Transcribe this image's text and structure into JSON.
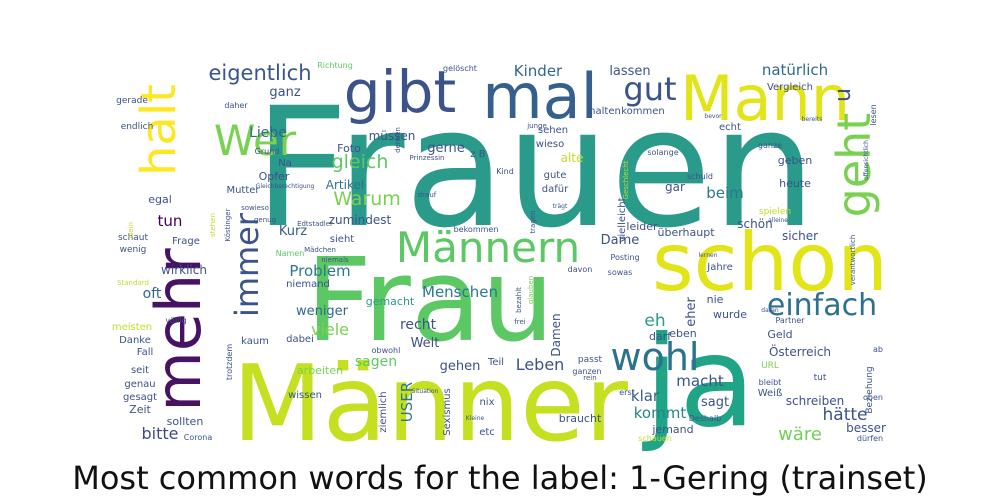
{
  "chart_data": {
    "type": "wordcloud",
    "title": "Most common words for the label: 1-Gering (trainset)",
    "colormap": "viridis",
    "background": "#ffffff",
    "words": [
      {
        "text": "Frauen",
        "weight": 1.0
      },
      {
        "text": "Frau",
        "weight": 0.85
      },
      {
        "text": "Männer",
        "weight": 0.8
      },
      {
        "text": "ja",
        "weight": 0.72
      },
      {
        "text": "schon",
        "weight": 0.55
      },
      {
        "text": "mehr",
        "weight": 0.5
      },
      {
        "text": "Mann",
        "weight": 0.5
      },
      {
        "text": "mal",
        "weight": 0.48
      },
      {
        "text": "gibt",
        "weight": 0.45
      },
      {
        "text": "Männern",
        "weight": 0.42
      },
      {
        "text": "wohl",
        "weight": 0.38
      },
      {
        "text": "einfach",
        "weight": 0.36
      },
      {
        "text": "Wer",
        "weight": 0.36
      },
      {
        "text": "geht",
        "weight": 0.36
      },
      {
        "text": "halt",
        "weight": 0.35
      },
      {
        "text": "immer",
        "weight": 0.32
      },
      {
        "text": "gut",
        "weight": 0.3
      },
      {
        "text": "eigentlich",
        "weight": 0.26
      },
      {
        "text": "gleich",
        "weight": 0.24
      },
      {
        "text": "Warum",
        "weight": 0.22
      },
      {
        "text": "Menschen",
        "weight": 0.21
      },
      {
        "text": "Leben",
        "weight": 0.2
      },
      {
        "text": "Kinder",
        "weight": 0.19
      },
      {
        "text": "natürlich",
        "weight": 0.19
      },
      {
        "text": "viele",
        "weight": 0.2
      },
      {
        "text": "wäre",
        "weight": 0.2
      },
      {
        "text": "hätte",
        "weight": 0.2
      },
      {
        "text": "macht",
        "weight": 0.19
      },
      {
        "text": "kommt",
        "weight": 0.19
      },
      {
        "text": "bitte",
        "weight": 0.19
      },
      {
        "text": "eh",
        "weight": 0.2
      },
      {
        "text": "Problem",
        "weight": 0.18
      },
      {
        "text": "Liebe",
        "weight": 0.17
      },
      {
        "text": "ganz",
        "weight": 0.17
      },
      {
        "text": "beim",
        "weight": 0.17
      },
      {
        "text": "tun",
        "weight": 0.17
      },
      {
        "text": "USER",
        "weight": 0.16
      },
      {
        "text": "weniger",
        "weight": 0.16
      },
      {
        "text": "klar",
        "weight": 0.17
      },
      {
        "text": "eher",
        "weight": 0.16
      },
      {
        "text": "sagt",
        "weight": 0.15
      },
      {
        "text": "sagen",
        "weight": 0.17
      },
      {
        "text": "recht",
        "weight": 0.15
      },
      {
        "text": "Welt",
        "weight": 0.15
      },
      {
        "text": "gehen",
        "weight": 0.15
      },
      {
        "text": "Dame",
        "weight": 0.15
      },
      {
        "text": "gerne",
        "weight": 0.15
      },
      {
        "text": "Kurz",
        "weight": 0.15
      },
      {
        "text": "oft",
        "weight": 0.15
      },
      {
        "text": "lassen",
        "weight": 0.14
      },
      {
        "text": "müssen",
        "weight": 0.14
      },
      {
        "text": "Artikel",
        "weight": 0.14
      },
      {
        "text": "zumindest",
        "weight": 0.13
      },
      {
        "text": "wirklich",
        "weight": 0.13
      },
      {
        "text": "alte",
        "weight": 0.13
      },
      {
        "text": "Damen",
        "weight": 0.13
      },
      {
        "text": "schön",
        "weight": 0.13
      },
      {
        "text": "sicher",
        "weight": 0.13
      },
      {
        "text": "Österreich",
        "weight": 0.13
      },
      {
        "text": "schreiben",
        "weight": 0.13
      },
      {
        "text": "besser",
        "weight": 0.13
      },
      {
        "text": "gemacht",
        "weight": 0.12
      },
      {
        "text": "braucht",
        "weight": 0.12
      },
      {
        "text": "jemand",
        "weight": 0.12
      },
      {
        "text": "Opfer",
        "weight": 0.12
      },
      {
        "text": "überhaupt",
        "weight": 0.12
      },
      {
        "text": "leider",
        "weight": 0.12
      },
      {
        "text": "gar",
        "weight": 0.12
      },
      {
        "text": "geben",
        "weight": 0.12
      },
      {
        "text": "heute",
        "weight": 0.12
      },
      {
        "text": "Foto",
        "weight": 0.12
      },
      {
        "text": "egal",
        "weight": 0.12
      },
      {
        "text": "ziemlich",
        "weight": 0.11
      },
      {
        "text": "etc",
        "weight": 0.11
      },
      {
        "text": "Sexismus",
        "weight": 0.11
      },
      {
        "text": "Weiß",
        "weight": 0.11
      },
      {
        "text": "Zeit",
        "weight": 0.11
      },
      {
        "text": "sollten",
        "weight": 0.11
      },
      {
        "text": "arbeiten",
        "weight": 0.11
      },
      {
        "text": "Geld",
        "weight": 0.11
      },
      {
        "text": "darf",
        "weight": 0.11
      },
      {
        "text": "eben",
        "weight": 0.11
      },
      {
        "text": "wurde",
        "weight": 0.11
      },
      {
        "text": "nie",
        "weight": 0.11
      },
      {
        "text": "Jahre",
        "weight": 0.1
      },
      {
        "text": "Teil",
        "weight": 0.1
      },
      {
        "text": "nix",
        "weight": 0.1
      },
      {
        "text": "dabei",
        "weight": 0.1
      },
      {
        "text": "kaum",
        "weight": 0.1
      },
      {
        "text": "Danke",
        "weight": 0.1
      },
      {
        "text": "Fall",
        "weight": 0.1
      },
      {
        "text": "seit",
        "weight": 0.1
      },
      {
        "text": "genau",
        "weight": 0.1
      },
      {
        "text": "gesagt",
        "weight": 0.1
      },
      {
        "text": "wissen",
        "weight": 0.1
      },
      {
        "text": "meisten",
        "weight": 0.1
      },
      {
        "text": "Frage",
        "weight": 0.1
      },
      {
        "text": "wenig",
        "weight": 0.1
      },
      {
        "text": "schaut",
        "weight": 0.1
      },
      {
        "text": "niemand",
        "weight": 0.1
      },
      {
        "text": "sieht",
        "weight": 0.1
      },
      {
        "text": "Mutter",
        "weight": 0.1
      },
      {
        "text": "vielleicht",
        "weight": 0.1
      },
      {
        "text": "dafür",
        "weight": 0.1
      },
      {
        "text": "gute",
        "weight": 0.1
      },
      {
        "text": "z B",
        "weight": 0.1
      },
      {
        "text": "sehen",
        "weight": 0.1
      },
      {
        "text": "wieso",
        "weight": 0.1
      },
      {
        "text": "halten",
        "weight": 0.1
      },
      {
        "text": "kommen",
        "weight": 0.1
      },
      {
        "text": "echt",
        "weight": 0.1
      },
      {
        "text": "Vergleich",
        "weight": 0.1
      },
      {
        "text": "Richtung",
        "weight": 0.09
      },
      {
        "text": "gelöscht",
        "weight": 0.09
      },
      {
        "text": "gerade",
        "weight": 0.09
      },
      {
        "text": "endlich",
        "weight": 0.09
      },
      {
        "text": "daher",
        "weight": 0.09
      },
      {
        "text": "Grund",
        "weight": 0.09
      },
      {
        "text": "Na",
        "weight": 0.09
      },
      {
        "text": "Beziehung",
        "weight": 0.09
      },
      {
        "text": "spielen",
        "weight": 0.09
      },
      {
        "text": "tut",
        "weight": 0.09
      },
      {
        "text": "oben",
        "weight": 0.08
      },
      {
        "text": "dürfen",
        "weight": 0.08
      },
      {
        "text": "schauen",
        "weight": 0.08
      },
      {
        "text": "Deshalb",
        "weight": 0.08
      },
      {
        "text": "URL",
        "weight": 0.08
      },
      {
        "text": "bleibt",
        "weight": 0.08
      },
      {
        "text": "Partner",
        "weight": 0.08
      },
      {
        "text": "passt",
        "weight": 0.08
      },
      {
        "text": "ganzen",
        "weight": 0.08
      },
      {
        "text": "rein",
        "weight": 0.08
      },
      {
        "text": "erst",
        "weight": 0.08
      },
      {
        "text": "obwohl",
        "weight": 0.08
      },
      {
        "text": "frei",
        "weight": 0.08
      },
      {
        "text": "bezahlt",
        "weight": 0.08
      },
      {
        "text": "glauben",
        "weight": 0.08
      },
      {
        "text": "davon",
        "weight": 0.08
      },
      {
        "text": "sowas",
        "weight": 0.08
      },
      {
        "text": "Posting",
        "weight": 0.08
      },
      {
        "text": "Namen",
        "weight": 0.08
      },
      {
        "text": "bekommen",
        "weight": 0.08
      },
      {
        "text": "Mädchen",
        "weight": 0.08
      },
      {
        "text": "niemals",
        "weight": 0.08
      },
      {
        "text": "Edtstadler",
        "weight": 0.08
      },
      {
        "text": "Köstinger",
        "weight": 0.08
      },
      {
        "text": "stehen",
        "weight": 0.08
      },
      {
        "text": "genug",
        "weight": 0.08
      },
      {
        "text": "sowieso",
        "weight": 0.08
      },
      {
        "text": "Kind",
        "weight": 0.08
      },
      {
        "text": "tragen",
        "weight": 0.08
      },
      {
        "text": "drauf",
        "weight": 0.08
      },
      {
        "text": "solange",
        "weight": 0.08
      },
      {
        "text": "Geschlecht",
        "weight": 0.08
      },
      {
        "text": "junge",
        "weight": 0.08
      },
      {
        "text": "denken",
        "weight": 0.08
      },
      {
        "text": "Prinzessin",
        "weight": 0.07
      },
      {
        "text": "Gleichberechtigung",
        "weight": 0.06
      },
      {
        "text": "ganze",
        "weight": 0.08
      },
      {
        "text": "schuld",
        "weight": 0.08
      },
      {
        "text": "völlig",
        "weight": 0.08
      },
      {
        "text": "trotzdem",
        "weight": 0.08
      },
      {
        "text": "Corona",
        "weight": 0.07
      },
      {
        "text": "Standard",
        "weight": 0.07
      },
      {
        "text": "Nein",
        "weight": 0.07
      },
      {
        "text": "offensichtlich",
        "weight": 0.06
      },
      {
        "text": "verantwortlich",
        "weight": 0.07
      },
      {
        "text": "lesen",
        "weight": 0.07
      },
      {
        "text": "bereits",
        "weight": 0.06
      },
      {
        "text": "bevor",
        "weight": 0.06
      },
      {
        "text": "lernen",
        "weight": 0.06
      },
      {
        "text": "ab",
        "weight": 0.07
      },
      {
        "text": "alleine",
        "weight": 0.06
      },
      {
        "text": "daran",
        "weight": 0.06
      },
      {
        "text": "trägt",
        "weight": 0.06
      },
      {
        "text": "Kleine",
        "weight": 0.06
      },
      {
        "text": "Situation",
        "weight": 0.06
      },
      {
        "text": "u",
        "weight": 0.1
      }
    ]
  }
}
